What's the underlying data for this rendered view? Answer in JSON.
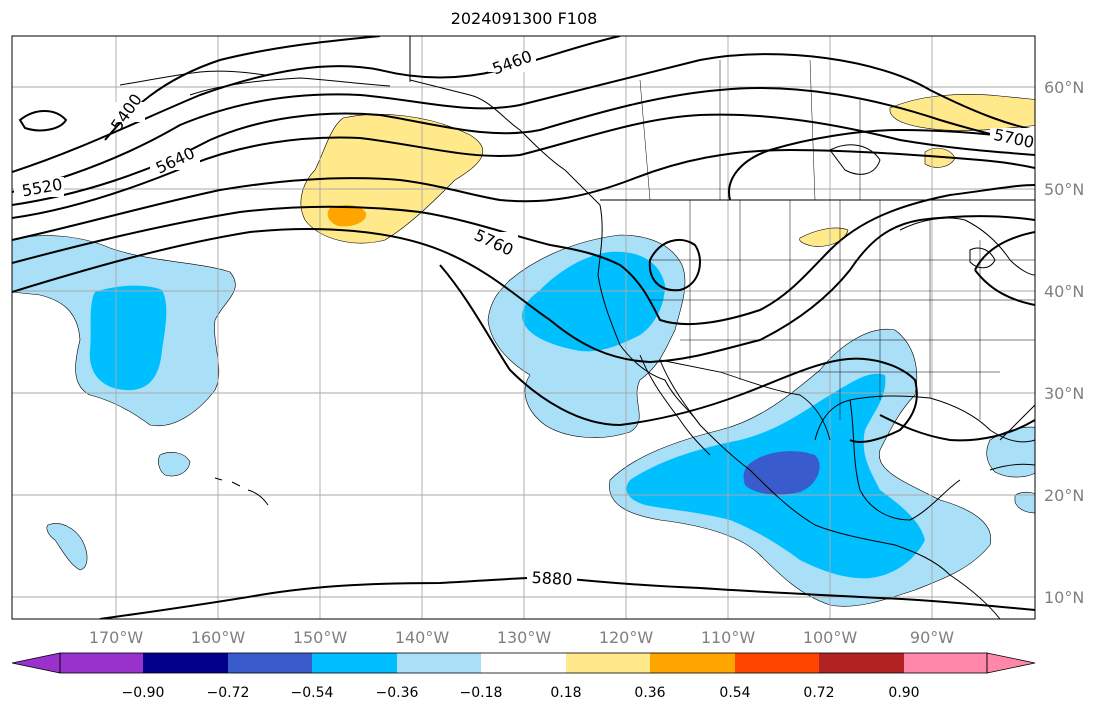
{
  "title": "2024091300 F108",
  "map": {
    "lon_labels": [
      "170°W",
      "160°W",
      "150°W",
      "140°W",
      "130°W",
      "120°W",
      "110°W",
      "100°W",
      "90°W"
    ],
    "lat_labels": [
      "60°N",
      "50°N",
      "40°N",
      "30°N",
      "20°N",
      "10°N"
    ],
    "contour_labels": [
      "5400",
      "5460",
      "5520",
      "5640",
      "5700",
      "5760",
      "5880"
    ],
    "contour_color": "#000000",
    "grid": true
  },
  "colorbar": {
    "tick_labels": [
      "−0.90",
      "−0.72",
      "−0.54",
      "−0.36",
      "−0.18",
      "0.18",
      "0.36",
      "0.54",
      "0.72",
      "0.90"
    ],
    "under_color": "#9932cc",
    "over_color": "#ff88aa",
    "colors": [
      "#00008b",
      "#3a5bcc",
      "#00bfff",
      "#aadff8",
      "#ffffff",
      "#ffe98a",
      "#ffa500",
      "#ff4500",
      "#b22222"
    ]
  }
}
